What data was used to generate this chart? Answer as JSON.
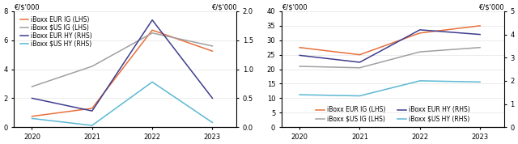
{
  "years": [
    2020,
    2021,
    2022,
    2023
  ],
  "chart1": {
    "title_left": "€/$'000",
    "title_right": "€/$'000",
    "lhs_ylim": [
      0,
      8
    ],
    "lhs_yticks": [
      0,
      2,
      4,
      6,
      8
    ],
    "rhs_ylim": [
      0.0,
      2.0
    ],
    "rhs_yticks": [
      0.0,
      0.5,
      1.0,
      1.5,
      2.0
    ],
    "lhs_series": {
      "iBoxx EUR IG (LHS)": {
        "values": [
          0.75,
          1.3,
          6.7,
          5.25
        ],
        "color": "#E8703A"
      },
      "iBoxx $US IG (LHS)": {
        "values": [
          2.8,
          4.2,
          6.5,
          5.6
        ],
        "color": "#A0A0A0"
      }
    },
    "rhs_series": {
      "iBoxx EUR HY (RHS)": {
        "values": [
          0.5,
          0.28,
          1.85,
          0.5
        ],
        "color": "#3D3D8F"
      },
      "iBoxx $US HY (RHS)": {
        "values": [
          0.15,
          0.03,
          0.78,
          0.08
        ],
        "color": "#5BB8D4"
      }
    }
  },
  "chart2": {
    "title_left": "€/$'000",
    "title_right": "€/$'000",
    "lhs_ylim": [
      0,
      40
    ],
    "lhs_yticks": [
      0,
      5,
      10,
      15,
      20,
      25,
      30,
      35,
      40
    ],
    "rhs_ylim": [
      0,
      5
    ],
    "rhs_yticks": [
      0,
      1,
      2,
      3,
      4,
      5
    ],
    "lhs_series": {
      "iBoxx EUR IG (LHS)": {
        "values": [
          27.5,
          25.0,
          32.5,
          35.0
        ],
        "color": "#E8703A"
      },
      "iBoxx $US IG (LHS)": {
        "values": [
          21.0,
          20.5,
          26.0,
          27.5
        ],
        "color": "#A0A0A0"
      }
    },
    "rhs_series": {
      "iBoxx EUR HY (RHS)": {
        "values": [
          3.1,
          2.8,
          4.2,
          4.0
        ],
        "color": "#3D3D8F"
      },
      "iBoxx $US HY (RHS)": {
        "values": [
          1.4,
          1.35,
          2.0,
          1.95
        ],
        "color": "#5BB8D4"
      }
    }
  },
  "background_color": "#FFFFFF",
  "font_size": 6.0,
  "line_width": 1.1
}
